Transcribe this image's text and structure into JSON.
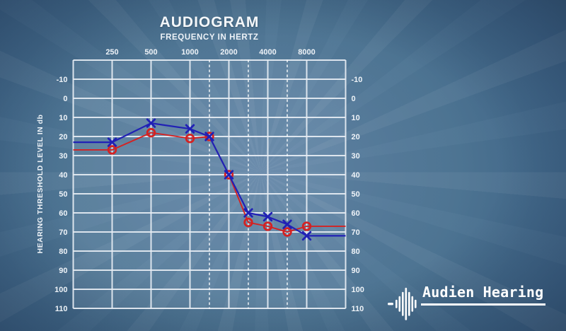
{
  "header": {
    "title": "AUDIOGRAM",
    "subtitle": "FREQUENCY IN HERTZ"
  },
  "y_axis": {
    "label": "HEARING THRESHOLD LEVEL IN db",
    "ticks_db": [
      -10,
      0,
      10,
      20,
      30,
      40,
      50,
      60,
      70,
      80,
      90,
      100,
      110
    ]
  },
  "x_axis": {
    "tick_labels": [
      "250",
      "500",
      "1000",
      "2000",
      "4000",
      "8000"
    ]
  },
  "chart_data": {
    "type": "line",
    "title": "AUDIOGRAM",
    "xlabel": "FREQUENCY IN HERTZ",
    "ylabel": "HEARING THRESHOLD LEVEL IN db",
    "x_frequencies_hz": [
      250,
      500,
      1000,
      1500,
      2000,
      3000,
      4000,
      6000,
      8000
    ],
    "x_labeled_ticks_hz": [
      250,
      500,
      1000,
      2000,
      4000,
      8000
    ],
    "x_dashed_gridlines_hz": [
      1500,
      3000,
      6000
    ],
    "y_ticks_db": [
      -10,
      0,
      10,
      20,
      30,
      40,
      50,
      60,
      70,
      80,
      90,
      100,
      110
    ],
    "y_range_db": [
      -20,
      110
    ],
    "y_axis_inverted": true,
    "grid": true,
    "legend_position": "none",
    "series": [
      {
        "name": "X (blue)",
        "marker": "x",
        "color": "#2121b5",
        "values_db": [
          23,
          13,
          16,
          20,
          40,
          60,
          62,
          66,
          72
        ]
      },
      {
        "name": "O (red)",
        "marker": "o",
        "color": "#d42222",
        "values_db": [
          27,
          18,
          21,
          20,
          40,
          65,
          67,
          70,
          67
        ]
      }
    ]
  },
  "logo": {
    "text": "Audien Hearing",
    "icon": "soundwave-icon"
  },
  "colors": {
    "background_center": "#4e7499",
    "background_edge": "#32506e",
    "grid_line": "#e7edf4",
    "dashed_line": "#ffffff",
    "series_x_blue": "#2121b5",
    "series_o_red": "#d42222",
    "text": "#eef3f8",
    "logo_text": "#ffffff"
  }
}
